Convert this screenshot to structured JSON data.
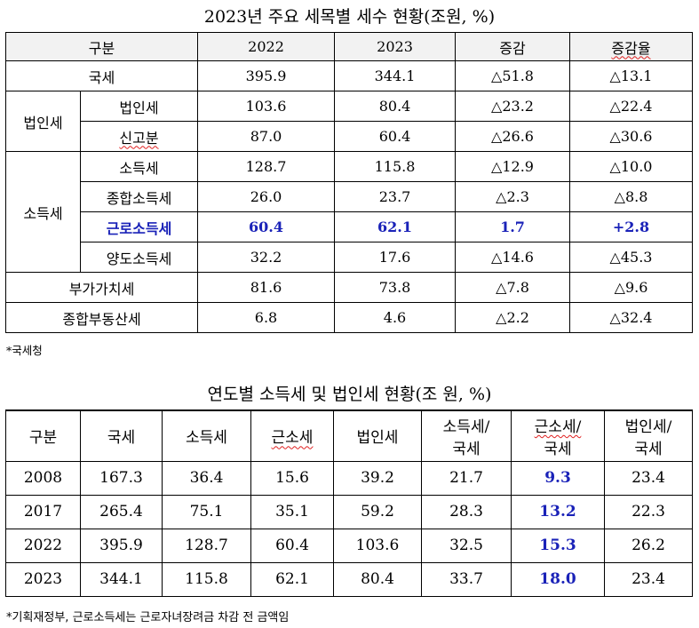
{
  "table1": {
    "title": "2023년 주요 세목별 세수 현황(조원, %)",
    "headers": [
      "구분",
      "2022",
      "2023",
      "증감",
      "증감율"
    ],
    "rows": {
      "national": {
        "label": "국세",
        "v2022": "395.9",
        "v2023": "344.1",
        "change": "△51.8",
        "rate": "△13.1"
      },
      "corp_group": "법인세",
      "corp": {
        "label": "법인세",
        "v2022": "103.6",
        "v2023": "80.4",
        "change": "△23.2",
        "rate": "△22.4"
      },
      "report": {
        "label": "신고분",
        "v2022": "87.0",
        "v2023": "60.4",
        "change": "△26.6",
        "rate": "△30.6"
      },
      "income_group": "소득세",
      "income": {
        "label": "소득세",
        "v2022": "128.7",
        "v2023": "115.8",
        "change": "△12.9",
        "rate": "△10.0"
      },
      "comprehensive": {
        "label": "종합소득세",
        "v2022": "26.0",
        "v2023": "23.7",
        "change": "△2.3",
        "rate": "△8.8"
      },
      "earned": {
        "label": "근로소득세",
        "v2022": "60.4",
        "v2023": "62.1",
        "change": "1.7",
        "rate": "+2.8"
      },
      "transfer": {
        "label": "양도소득세",
        "v2022": "32.2",
        "v2023": "17.6",
        "change": "△14.6",
        "rate": "△45.3"
      },
      "vat": {
        "label": "부가가치세",
        "v2022": "81.6",
        "v2023": "73.8",
        "change": "△7.8",
        "rate": "△9.6"
      },
      "property": {
        "label": "종합부동산세",
        "v2022": "6.8",
        "v2023": "4.6",
        "change": "△2.2",
        "rate": "△32.4"
      }
    },
    "note": "*국세청"
  },
  "table2": {
    "title": "연도별 소득세 및 법인세 현황(조 원, %)",
    "headers": {
      "c0": "구분",
      "c1": "국세",
      "c2": "소득세",
      "c3": "근소세",
      "c4": "법인세",
      "c5a": "소득세/",
      "c5b": "국세",
      "c6a": "근소세/",
      "c6b": "국세",
      "c7a": "법인세/",
      "c7b": "국세"
    },
    "rows": [
      [
        "2008",
        "167.3",
        "36.4",
        "15.6",
        "39.2",
        "21.7",
        "9.3",
        "23.4"
      ],
      [
        "2017",
        "265.4",
        "75.1",
        "35.1",
        "59.2",
        "28.3",
        "13.2",
        "22.3"
      ],
      [
        "2022",
        "395.9",
        "128.7",
        "60.4",
        "103.6",
        "32.5",
        "15.3",
        "26.2"
      ],
      [
        "2023",
        "344.1",
        "115.8",
        "62.1",
        "80.4",
        "33.7",
        "18.0",
        "23.4"
      ]
    ],
    "note": "*기획재정부, 근로소득세는 근로자녀장려금 차감 전 금액임"
  },
  "colors": {
    "highlight": "#1a22b8",
    "header_bg": "#f2f2f2",
    "spell_underline": "#e02020"
  }
}
